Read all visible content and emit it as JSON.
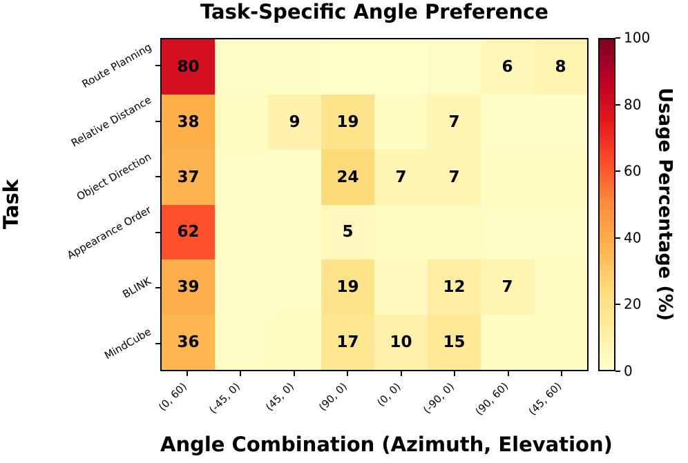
{
  "title": "Task-Specific Angle Preference",
  "axes": {
    "x_label": "Angle Combination (Azimuth, Elevation)",
    "y_label": "Task"
  },
  "colorbar": {
    "label": "Usage Percentage (%)",
    "ticks": [
      0,
      20,
      40,
      60,
      80,
      100
    ],
    "vmin": 0,
    "vmax": 100
  },
  "chart_data": {
    "type": "heatmap",
    "title": "Task-Specific Angle Preference",
    "xlabel": "Angle Combination (Azimuth, Elevation)",
    "ylabel": "Task",
    "columns": [
      "(0, 60)",
      "(-45, 0)",
      "(45, 0)",
      "(90, 0)",
      "(0, 0)",
      "(-90, 0)",
      "(90, 60)",
      "(45, 60)"
    ],
    "rows": [
      "Route Planning",
      "Relative Distance",
      "Object Direction",
      "Appearance Order",
      "BLINK",
      "MindCube"
    ],
    "annotated_values": [
      [
        80,
        null,
        null,
        null,
        null,
        null,
        6,
        8
      ],
      [
        38,
        null,
        9,
        19,
        null,
        7,
        null,
        null
      ],
      [
        37,
        null,
        null,
        24,
        7,
        7,
        null,
        null
      ],
      [
        62,
        null,
        null,
        5,
        null,
        null,
        null,
        null
      ],
      [
        39,
        null,
        null,
        19,
        null,
        12,
        7,
        null
      ],
      [
        36,
        null,
        null,
        17,
        10,
        15,
        null,
        null
      ]
    ],
    "values": [
      [
        80,
        2,
        2,
        1,
        1,
        2,
        6,
        8
      ],
      [
        38,
        3,
        9,
        19,
        3,
        7,
        2,
        2
      ],
      [
        37,
        2,
        2,
        24,
        7,
        7,
        3,
        3
      ],
      [
        62,
        2,
        2,
        5,
        3,
        3,
        2,
        2
      ],
      [
        39,
        2,
        2,
        19,
        4,
        12,
        7,
        3
      ],
      [
        36,
        2,
        3,
        17,
        10,
        15,
        3,
        3
      ]
    ],
    "annotation_threshold": 5,
    "vmin": 0,
    "vmax": 100,
    "colormap": "YlOrRd",
    "colormap_anchors": [
      "#ffffcc",
      "#ffeda0",
      "#fed976",
      "#feb24c",
      "#fd8d3c",
      "#fc4e2a",
      "#e31a1c",
      "#bd0026",
      "#800026"
    ],
    "annotation_color": "#000000",
    "legend_position": "right-colorbar",
    "grid": false
  }
}
